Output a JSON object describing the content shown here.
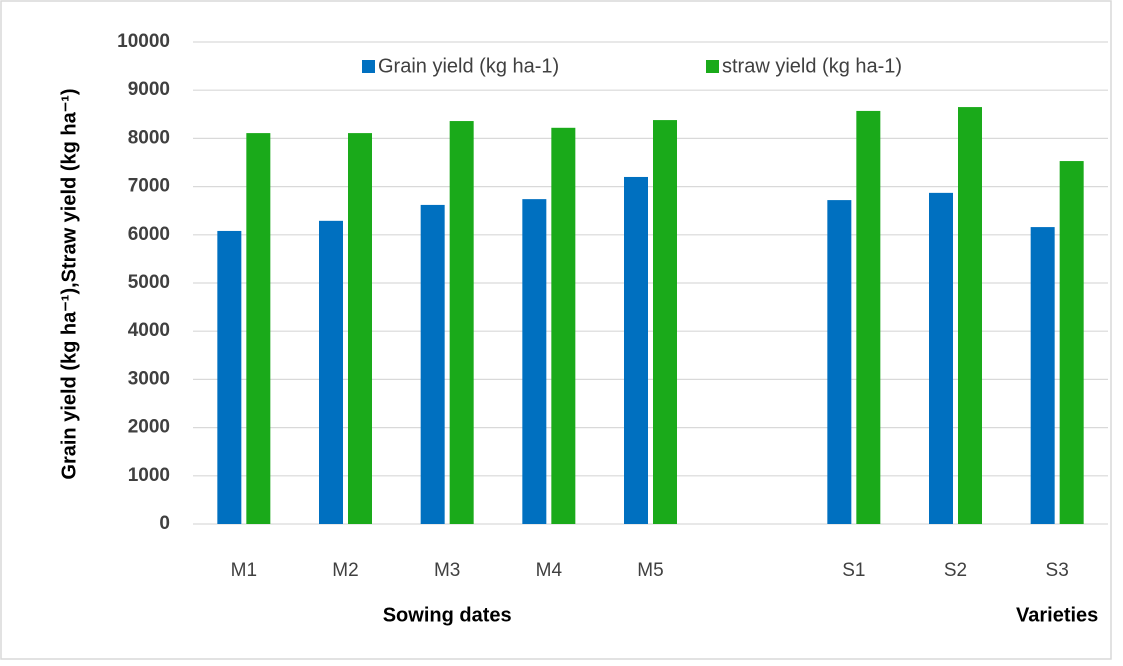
{
  "chart_data": {
    "type": "bar",
    "y_label": "Grain yield (kg ha⁻¹),Straw yield (kg ha⁻¹)",
    "x_group_labels": [
      "Sowing dates",
      "Varieties"
    ],
    "categories": [
      "M1",
      "M2",
      "M3",
      "M4",
      "M5",
      null,
      "S1",
      "S2",
      "S3"
    ],
    "series": [
      {
        "name": "Grain yield (kg ha-1)",
        "color": "#0070c0",
        "values": [
          6080,
          6290,
          6620,
          6740,
          7200,
          null,
          6720,
          6870,
          6160
        ]
      },
      {
        "name": "straw yield (kg ha-1)",
        "color": "#1aaa1a",
        "values": [
          8110,
          8110,
          8360,
          8220,
          8380,
          null,
          8570,
          8650,
          7530
        ]
      }
    ],
    "ylim": [
      0,
      10000
    ],
    "yticks": [
      0,
      1000,
      2000,
      3000,
      4000,
      5000,
      6000,
      7000,
      8000,
      9000,
      10000
    ],
    "grid": true,
    "legend": "top"
  }
}
